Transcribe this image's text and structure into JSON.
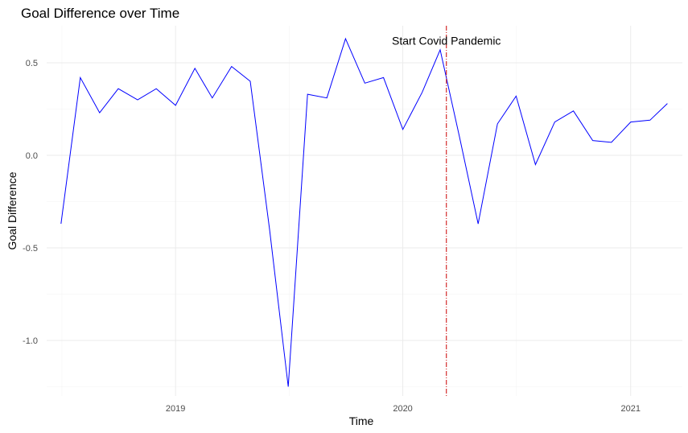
{
  "chart_data": {
    "type": "line",
    "title": "Goal Difference over Time",
    "xlabel": "Time",
    "ylabel": "Goal Difference",
    "x_ticks": [
      {
        "value": "2019-01-01",
        "label": "2019"
      },
      {
        "value": "2020-01-01",
        "label": "2020"
      },
      {
        "value": "2021-01-01",
        "label": "2021"
      }
    ],
    "y_ticks": [
      {
        "value": 0.5,
        "label": "0.5"
      },
      {
        "value": 0.0,
        "label": "0.0"
      },
      {
        "value": -0.5,
        "label": "-0.5"
      },
      {
        "value": -1.0,
        "label": "-1.0"
      }
    ],
    "xlim": [
      "2018-06-08",
      "2021-03-25"
    ],
    "ylim": [
      -1.3,
      0.7
    ],
    "grid": true,
    "series": [
      {
        "color": "#0000ff",
        "x": [
          "2018-07-01",
          "2018-08-01",
          "2018-09-01",
          "2018-10-01",
          "2018-11-01",
          "2018-12-01",
          "2019-01-01",
          "2019-02-01",
          "2019-03-01",
          "2019-04-01",
          "2019-05-01",
          "2019-06-01",
          "2019-07-01",
          "2019-08-01",
          "2019-09-01",
          "2019-10-01",
          "2019-11-01",
          "2019-12-01",
          "2020-01-01",
          "2020-02-01",
          "2020-03-01",
          "2020-04-01",
          "2020-05-01",
          "2020-06-01",
          "2020-07-01",
          "2020-08-01",
          "2020-09-01",
          "2020-10-01",
          "2020-11-01",
          "2020-12-01",
          "2021-01-01",
          "2021-02-01",
          "2021-03-01"
        ],
        "values": [
          -0.37,
          0.42,
          0.23,
          0.36,
          0.3,
          0.36,
          0.27,
          0.47,
          0.31,
          0.48,
          0.4,
          -0.4,
          -1.25,
          0.33,
          0.31,
          0.63,
          0.39,
          0.42,
          0.14,
          0.34,
          0.57,
          0.1,
          -0.37,
          0.17,
          0.32,
          -0.05,
          0.18,
          0.24,
          0.08,
          0.07,
          0.18,
          0.19,
          0.28
        ]
      }
    ],
    "vline": {
      "x": "2020-03-11",
      "color": "#cc0000",
      "style": "dash-dot"
    },
    "annotation": {
      "x": "2020-03-11",
      "y": 0.62,
      "text": "Start Covid Pandemic"
    }
  }
}
